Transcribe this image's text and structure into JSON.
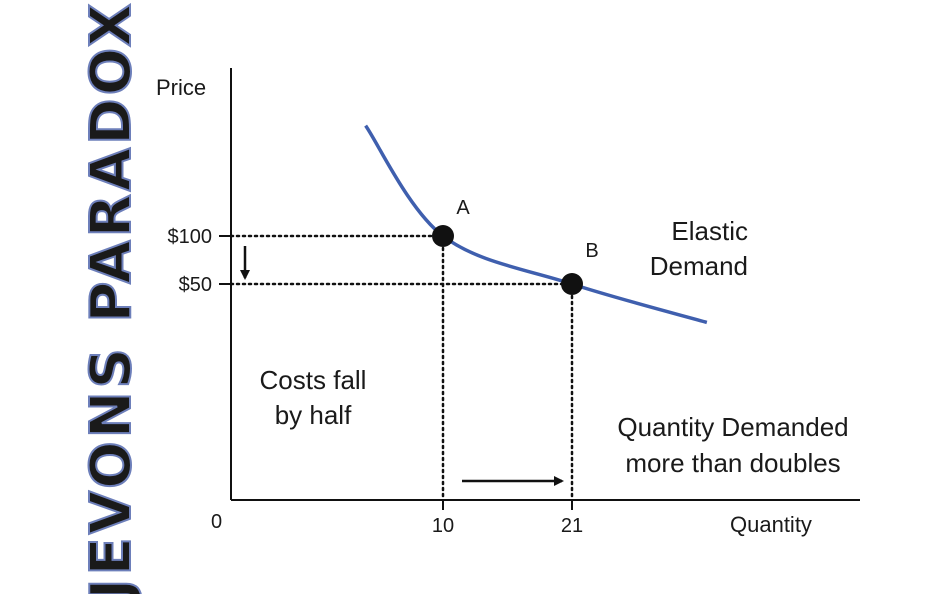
{
  "side_title": "JEVONS PARADOX",
  "colors": {
    "curve": "#3f5fae",
    "side_title_fill": "#e6e8f2",
    "side_title_stroke": "#6d7fba",
    "ink": "#111111"
  },
  "chart_data": {
    "type": "line",
    "title": "",
    "xlabel": "Quantity",
    "ylabel": "Price",
    "origin_label": "0",
    "series": [
      {
        "name": "Elastic Demand",
        "x": [
          3.4,
          10,
          21,
          32.5
        ],
        "y": [
          215,
          100,
          50,
          10
        ]
      }
    ],
    "points": [
      {
        "label": "A",
        "x": 10,
        "y": 100
      },
      {
        "label": "B",
        "x": 21,
        "y": 50
      }
    ],
    "x_ticks": [
      {
        "value": 10,
        "label": "10"
      },
      {
        "value": 21,
        "label": "21"
      }
    ],
    "y_ticks": [
      {
        "value": 100,
        "label": "$100"
      },
      {
        "value": 50,
        "label": "$50"
      }
    ],
    "annotations": {
      "curve_label": [
        "Elastic",
        "Demand"
      ],
      "price_note": [
        "Costs fall",
        "by half"
      ],
      "quantity_note": [
        "Quantity Demanded",
        "more than doubles"
      ]
    },
    "grid": false,
    "legend": "none"
  }
}
